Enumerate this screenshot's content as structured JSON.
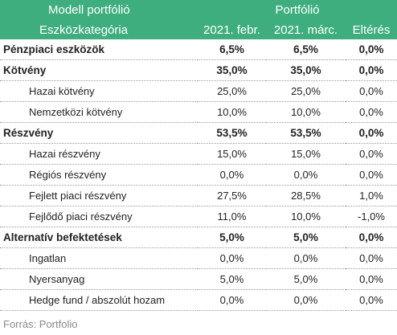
{
  "header": {
    "row1": {
      "col1": "Modell portfólió",
      "portfolio": "Portfólió"
    },
    "row2": {
      "col1": "Eszközkategória",
      "feb": "2021. febr.",
      "mar": "2021. márc.",
      "diff": "Eltérés"
    }
  },
  "colors": {
    "header_bg": "#3fae7e",
    "header_text": "#ffffff"
  },
  "rows": [
    {
      "name": "Pénzpiaci eszközök",
      "feb": "6,5%",
      "mar": "6,5%",
      "diff": "0,0%"
    },
    {
      "name": "Kötvény",
      "feb": "35,0%",
      "mar": "35,0%",
      "diff": "0,0%"
    },
    {
      "name": "Hazai kötvény",
      "feb": "25,0%",
      "mar": "25,0%",
      "diff": "0,0%"
    },
    {
      "name": "Nemzetközi kötvény",
      "feb": "10,0%",
      "mar": "10,0%",
      "diff": "0,0%"
    },
    {
      "name": "Részvény",
      "feb": "53,5%",
      "mar": "53,5%",
      "diff": "0,0%"
    },
    {
      "name": "Hazai részvény",
      "feb": "15,0%",
      "mar": "15,0%",
      "diff": "0,0%"
    },
    {
      "name": "Régiós részvény",
      "feb": "0,0%",
      "mar": "0,0%",
      "diff": "0,0%"
    },
    {
      "name": "Fejlett piaci részvény",
      "feb": "27,5%",
      "mar": "28,5%",
      "diff": "1,0%"
    },
    {
      "name": "Fejlődő piaci részvény",
      "feb": "11,0%",
      "mar": "10,0%",
      "diff": "-1,0%"
    },
    {
      "name": "Alternatív befektetések",
      "feb": "5,0%",
      "mar": "5,0%",
      "diff": "0,0%"
    },
    {
      "name": "Ingatlan",
      "feb": "0,0%",
      "mar": "0,0%",
      "diff": "0,0%"
    },
    {
      "name": "Nyersanyag",
      "feb": "5,0%",
      "mar": "5,0%",
      "diff": "0,0%"
    },
    {
      "name": "Hedge fund / abszolút hozam",
      "feb": "0,0%",
      "mar": "0,0%",
      "diff": "0,0%"
    }
  ],
  "source": "Forrás: Portfolio"
}
